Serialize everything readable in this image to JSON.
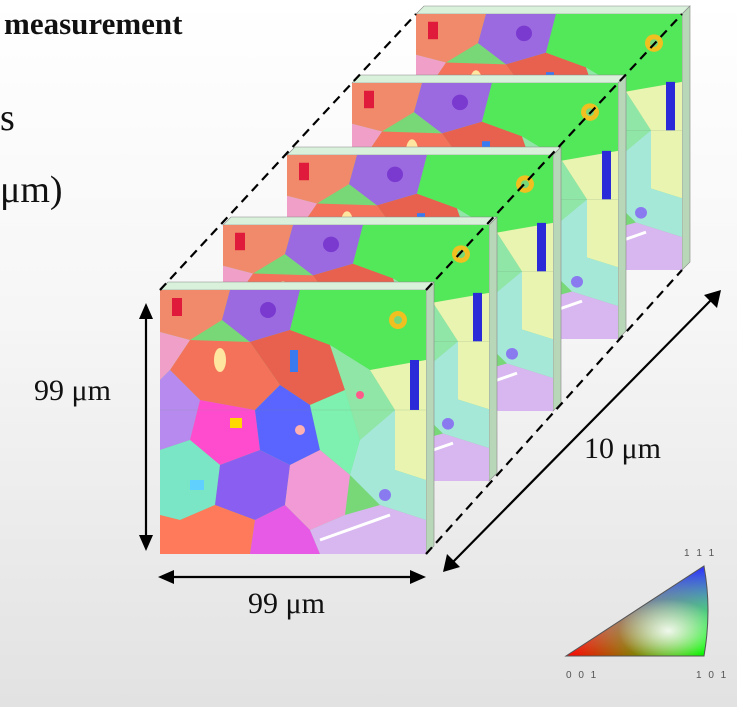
{
  "text": {
    "line1": "measurement",
    "line2": "s",
    "line3": "μm)"
  },
  "dimensions": {
    "height": "99 μm",
    "width": "99 μm",
    "depth": "10 μm"
  },
  "color_key": {
    "top": "1 1 1",
    "bottom_left": "0 0 1",
    "bottom_right": "1 0 1"
  }
}
